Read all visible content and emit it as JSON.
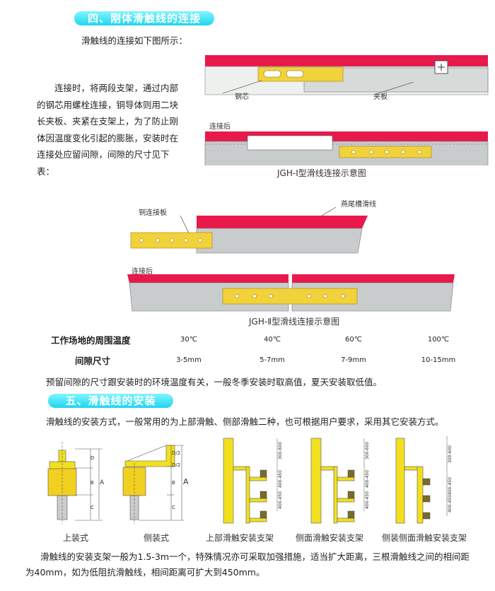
{
  "section4": {
    "title": "四、刚体滑触线的连接",
    "intro": "滑触线的连接如下图所示：",
    "paragraph": "连接时，将两段支架，通过内部的钢芯用螺栓连接，铜导体则用二块长夹板、夹紧在支架上，为了防止刚体因温度变化引起的膨胀，安装时在连接处应留间隙，间隙的尺寸见下表：",
    "diagram1": {
      "label_core": "钢芯",
      "label_clamp": "夹板",
      "label_after": "连接后",
      "caption": "JGH-Ⅰ型滑线连接示意图"
    },
    "diagram2": {
      "label_plate": "铜连接板",
      "label_rail": "燕尾槽滑线",
      "label_after": "连接后",
      "caption": "JGH-Ⅱ型滑线连接示意图"
    },
    "table": {
      "rows": [
        {
          "label": "工作场地的周围温度",
          "values": [
            "30℃",
            "40℃",
            "60℃",
            "100℃"
          ]
        },
        {
          "label": "间隙尺寸",
          "values": [
            "3-5mm",
            "5-7mm",
            "7-9mm",
            "10-15mm"
          ]
        }
      ]
    },
    "note": "预留间隙的尺寸跟安装时的环境温度有关，一般冬季安装时取高值，夏天安装取低值。"
  },
  "section5": {
    "title": "五、滑触线的安装",
    "intro": "滑触线的安装方式，一般常用的为上部滑触、侧部滑触二种，也可根据用户要求，采用其它安装方式。",
    "figures": [
      {
        "caption": "上装式",
        "dims": [
          "D",
          "B",
          "C",
          "A"
        ]
      },
      {
        "caption": "侧装式",
        "dims": [
          "D/2",
          "D/2",
          "B",
          "C",
          "A"
        ]
      },
      {
        "caption": "上部滑触安装支架",
        "dims": [
          "300-600",
          "400-450",
          "400-450"
        ]
      },
      {
        "caption": "侧面滑触安装支架",
        "dims": [
          "300-600",
          "400-450",
          "400-450"
        ]
      },
      {
        "caption": "侧装侧面滑触安装支架",
        "dims": [
          "300-600",
          "400-450",
          "400-450"
        ]
      }
    ],
    "paragraph_line1": "滑触线的安装支架一般为1.5-3m一个，特殊情况亦可采取加强措施，适当扩大距离，三根滑触线之间的相间距",
    "paragraph_line2": "为40mm，如为低阻抗滑触线，相间距离可扩大到450mm。"
  },
  "colors": {
    "pill": "#22d8ef",
    "rail_red": "#e8194b",
    "rail_gray": "#c8cccc",
    "copper": "#f2d23a",
    "bracket": "#f0e020"
  }
}
